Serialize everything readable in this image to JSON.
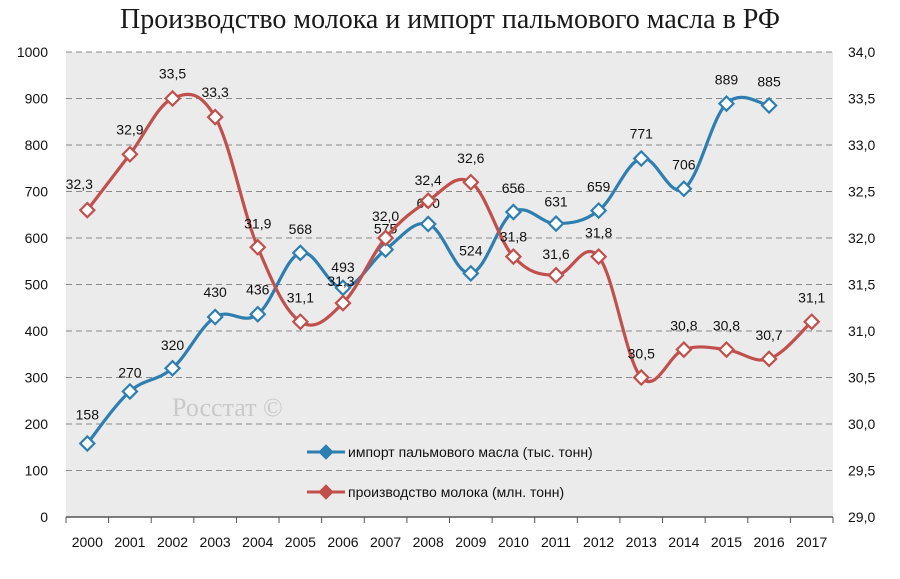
{
  "chart_data": {
    "type": "line",
    "title": "Производство молока и импорт пальмового масла в РФ",
    "x": [
      "2000",
      "2001",
      "2002",
      "2003",
      "2004",
      "2005",
      "2006",
      "2007",
      "2008",
      "2009",
      "2010",
      "2011",
      "2012",
      "2013",
      "2014",
      "2015",
      "2016",
      "2017"
    ],
    "y_left_ticks": [
      "0",
      "100",
      "200",
      "300",
      "400",
      "500",
      "600",
      "700",
      "800",
      "900",
      "1000"
    ],
    "y_right_ticks": [
      "29,0",
      "29,5",
      "30,0",
      "30,5",
      "31,0",
      "31,5",
      "32,0",
      "32,5",
      "33,0",
      "33,5",
      "34,0"
    ],
    "ylim_left": [
      0,
      1000
    ],
    "ylim_right": [
      29.0,
      34.0
    ],
    "grid": true,
    "legend_position": "bottom-center",
    "watermark": "Росстат ©",
    "series": [
      {
        "name": "импорт пальмового масла (тыс. тонн)",
        "axis": "left",
        "color": "#2e7fb0",
        "values": [
          158,
          270,
          320,
          430,
          436,
          568,
          493,
          575,
          630,
          524,
          656,
          631,
          659,
          771,
          706,
          889,
          885,
          null
        ],
        "labels": [
          "158",
          "270",
          "320",
          "430",
          "436",
          "568",
          "493",
          "575",
          "630",
          "524",
          "656",
          "631",
          "659",
          "771",
          "706",
          "889",
          "885",
          ""
        ]
      },
      {
        "name": "производство молока (млн. тонн)",
        "axis": "right",
        "color": "#c0504d",
        "values": [
          32.3,
          32.9,
          33.5,
          33.3,
          31.9,
          31.1,
          31.3,
          32.0,
          32.4,
          32.6,
          31.8,
          31.6,
          31.8,
          30.5,
          30.8,
          30.8,
          30.7,
          31.1
        ],
        "labels": [
          "32,3",
          "32,9",
          "33,5",
          "33,3",
          "31,9",
          "31,1",
          "31,3",
          "32,0",
          "32,4",
          "32,6",
          "31,8",
          "31,6",
          "31,8",
          "30,5",
          "30,8",
          "30,8",
          "30,7",
          "31,1"
        ]
      }
    ]
  }
}
